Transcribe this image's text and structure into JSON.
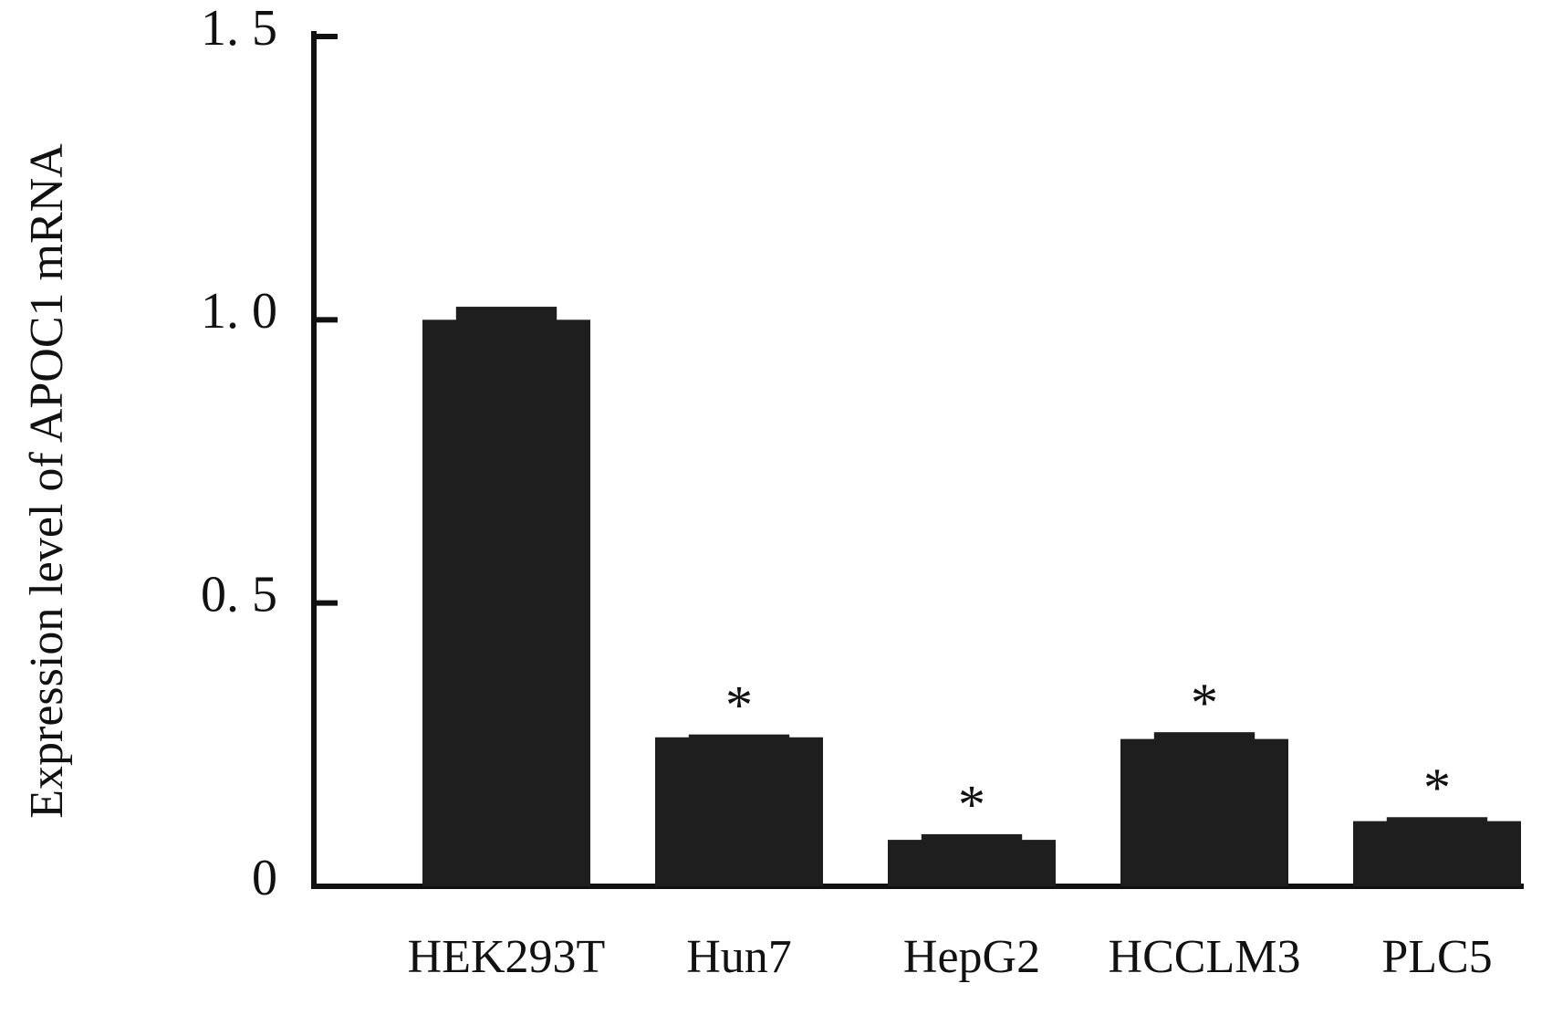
{
  "chart_data": {
    "type": "bar",
    "y_label": "Expression level of APOC1 mRNA",
    "categories": [
      "HEK293T",
      "Hun7",
      "HepG2",
      "HCCLM3",
      "PLC5"
    ],
    "values": [
      1.0,
      0.263,
      0.082,
      0.26,
      0.115
    ],
    "errors": [
      0.023,
      0.005,
      0.01,
      0.012,
      0.007
    ],
    "significance": [
      null,
      "*",
      "*",
      "*",
      "*"
    ],
    "color": "#1e1e1e",
    "ylim": [
      0,
      1.5
    ],
    "yticks": [
      0,
      {
        "value": 0.5,
        "label": "0. 5"
      },
      {
        "value": 1.0,
        "label": "1. 0"
      },
      {
        "value": 1.5,
        "label": "1. 5"
      }
    ],
    "grid": false
  }
}
